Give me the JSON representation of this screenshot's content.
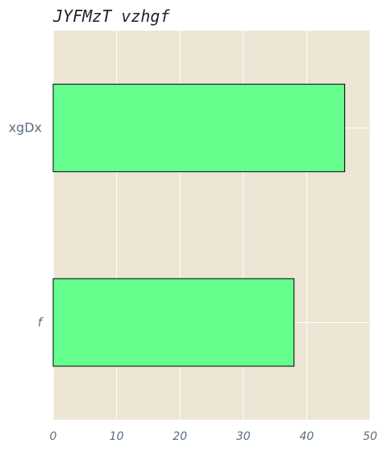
{
  "chart_data": {
    "type": "bar",
    "orientation": "horizontal",
    "title": "JYFMzT vzhgf",
    "xlabel": "",
    "ylabel": "",
    "categories": [
      "f",
      "xgDx"
    ],
    "values": [
      38,
      46
    ],
    "xlim": [
      0,
      50
    ],
    "xticks": [
      "0",
      "10",
      "20",
      "30",
      "40",
      "50"
    ],
    "grid": true,
    "colors": {
      "background": "#ede6d4",
      "bar_fill": "#66ff8e",
      "bar_edge": "#000000",
      "grid": "#ffffff",
      "tick_text": "#5d6e7e"
    }
  }
}
